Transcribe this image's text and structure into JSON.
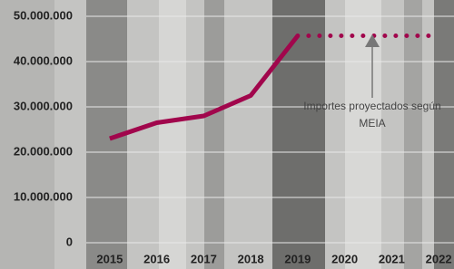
{
  "chart_data": {
    "type": "line",
    "categories": [
      "2015",
      "2016",
      "2017",
      "2018",
      "2019",
      "2020",
      "2021",
      "2022"
    ],
    "series": [
      {
        "color": "#a1064c",
        "style": "solid",
        "values": [
          23000000,
          26500000,
          28000000,
          32500000,
          45700000,
          null,
          null,
          null
        ]
      },
      {
        "color": "#a1064c",
        "style": "dotted",
        "values": [
          null,
          null,
          null,
          null,
          45700000,
          45700000,
          45700000,
          45700000
        ]
      }
    ],
    "ylim": [
      0,
      50000000
    ],
    "yticks": [
      0,
      {
        "value": 10000000,
        "label": "10.000.000"
      },
      {
        "value": 20000000,
        "label": "20.000.000"
      },
      {
        "value": 30000000,
        "label": "30.000.000"
      },
      {
        "value": 40000000,
        "label": "40.000.000"
      },
      {
        "value": 50000000,
        "label": "50.000.000"
      }
    ],
    "grid": true,
    "annotation": [
      "Importes proyectados según",
      "MEIA"
    ]
  }
}
